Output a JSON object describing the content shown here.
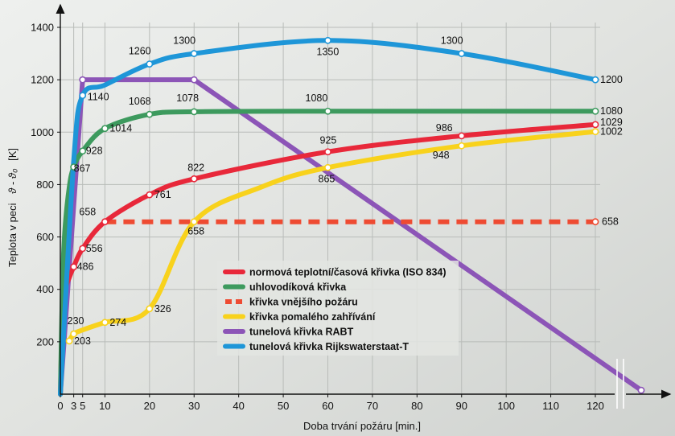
{
  "chart_data": {
    "type": "line",
    "title": "",
    "xlabel": "Doba trvání požáru [min.]",
    "ylabel": "Teplota v peci",
    "ylabel_symbol": "ϑ - ϑ₀",
    "ylabel_unit": "[K]",
    "xlim": [
      0,
      129
    ],
    "ylim": [
      0,
      1400
    ],
    "x_ticks": [
      0,
      3,
      5,
      10,
      20,
      30,
      40,
      50,
      60,
      70,
      80,
      90,
      100,
      110,
      120
    ],
    "y_ticks": [
      200,
      400,
      600,
      800,
      1000,
      1200,
      1400
    ],
    "grid": true,
    "legend_position": "center",
    "series": [
      {
        "name": "normová teplotní/časová křivka (ISO 834)",
        "color": "#e8283a",
        "dashed": false,
        "x": [
          0,
          0.5,
          1,
          2,
          3,
          5,
          10,
          20,
          30,
          60,
          90,
          120
        ],
        "y": [
          0,
          329,
          397,
          445,
          486,
          556,
          658,
          761,
          822,
          925,
          986,
          1029
        ],
        "markers": [
          {
            "x": 3,
            "y": 486,
            "label": "486"
          },
          {
            "x": 5,
            "y": 556,
            "label": "556"
          },
          {
            "x": 10,
            "y": 658,
            "label": "658"
          },
          {
            "x": 20,
            "y": 761,
            "label": "761"
          },
          {
            "x": 30,
            "y": 822,
            "label": "822"
          },
          {
            "x": 60,
            "y": 925,
            "label": "925"
          },
          {
            "x": 90,
            "y": 986,
            "label": "986"
          },
          {
            "x": 120,
            "y": 1029,
            "label": "1029"
          }
        ]
      },
      {
        "name": "uhlovodíková křivka",
        "color": "#3d9a5e",
        "dashed": false,
        "x": [
          0,
          0.5,
          1,
          2,
          3,
          5,
          10,
          20,
          30,
          60,
          90,
          120
        ],
        "y": [
          0,
          430,
          620,
          790,
          867,
          928,
          1014,
          1068,
          1078,
          1080,
          1080,
          1080
        ],
        "markers": [
          {
            "x": 3,
            "y": 867,
            "label": "867"
          },
          {
            "x": 5,
            "y": 928,
            "label": "928"
          },
          {
            "x": 10,
            "y": 1014,
            "label": "1014"
          },
          {
            "x": 20,
            "y": 1068,
            "label": "1068"
          },
          {
            "x": 30,
            "y": 1078,
            "label": "1078"
          },
          {
            "x": 60,
            "y": 1080,
            "label": "1080"
          },
          {
            "x": 120,
            "y": 1080,
            "label": "1080"
          }
        ]
      },
      {
        "name": "křivka vnějšího požáru",
        "color": "#ee4b32",
        "dashed": true,
        "x": [
          10,
          20,
          30,
          60,
          90,
          120
        ],
        "y": [
          658,
          658,
          658,
          658,
          658,
          658
        ],
        "markers": [
          {
            "x": 120,
            "y": 658,
            "label": "658"
          }
        ]
      },
      {
        "name": "křivka pomalého zahřívání",
        "color": "#f8d21c",
        "dashed": false,
        "x": [
          2,
          3,
          5,
          10,
          20,
          30,
          45,
          60,
          90,
          120
        ],
        "y": [
          203,
          230,
          245,
          274,
          326,
          658,
          790,
          865,
          948,
          1002
        ],
        "markers": [
          {
            "x": 2,
            "y": 203,
            "label": "203"
          },
          {
            "x": 3,
            "y": 230,
            "label": "230"
          },
          {
            "x": 10,
            "y": 274,
            "label": "274"
          },
          {
            "x": 20,
            "y": 326,
            "label": "326"
          },
          {
            "x": 30,
            "y": 658,
            "label": "658"
          },
          {
            "x": 60,
            "y": 865,
            "label": "865"
          },
          {
            "x": 90,
            "y": 948,
            "label": "948"
          },
          {
            "x": 120,
            "y": 1002,
            "label": "1002"
          }
        ]
      },
      {
        "name": "tunelová křivka RABT",
        "color": "#8c55b7",
        "dashed": false,
        "x": [
          0,
          5,
          30,
          129
        ],
        "y": [
          0,
          1200,
          1200,
          15
        ],
        "markers": [
          {
            "x": 5,
            "y": 1200,
            "label": ""
          },
          {
            "x": 30,
            "y": 1200,
            "label": ""
          },
          {
            "x": 129,
            "y": 15,
            "label": ""
          }
        ]
      },
      {
        "name": "tunelová křivka Rijkswaterstaat-T",
        "color": "#1e96d8",
        "dashed": false,
        "x": [
          0,
          3,
          5,
          10,
          20,
          30,
          60,
          90,
          120
        ],
        "y": [
          0,
          890,
          1140,
          1180,
          1260,
          1300,
          1350,
          1300,
          1200
        ],
        "markers": [
          {
            "x": 5,
            "y": 1140,
            "label": "1140"
          },
          {
            "x": 20,
            "y": 1260,
            "label": "1260"
          },
          {
            "x": 30,
            "y": 1300,
            "label": "1300"
          },
          {
            "x": 60,
            "y": 1350,
            "label": "1350"
          },
          {
            "x": 90,
            "y": 1300,
            "label": "1300"
          },
          {
            "x": 120,
            "y": 1200,
            "label": "1200"
          }
        ]
      }
    ]
  }
}
